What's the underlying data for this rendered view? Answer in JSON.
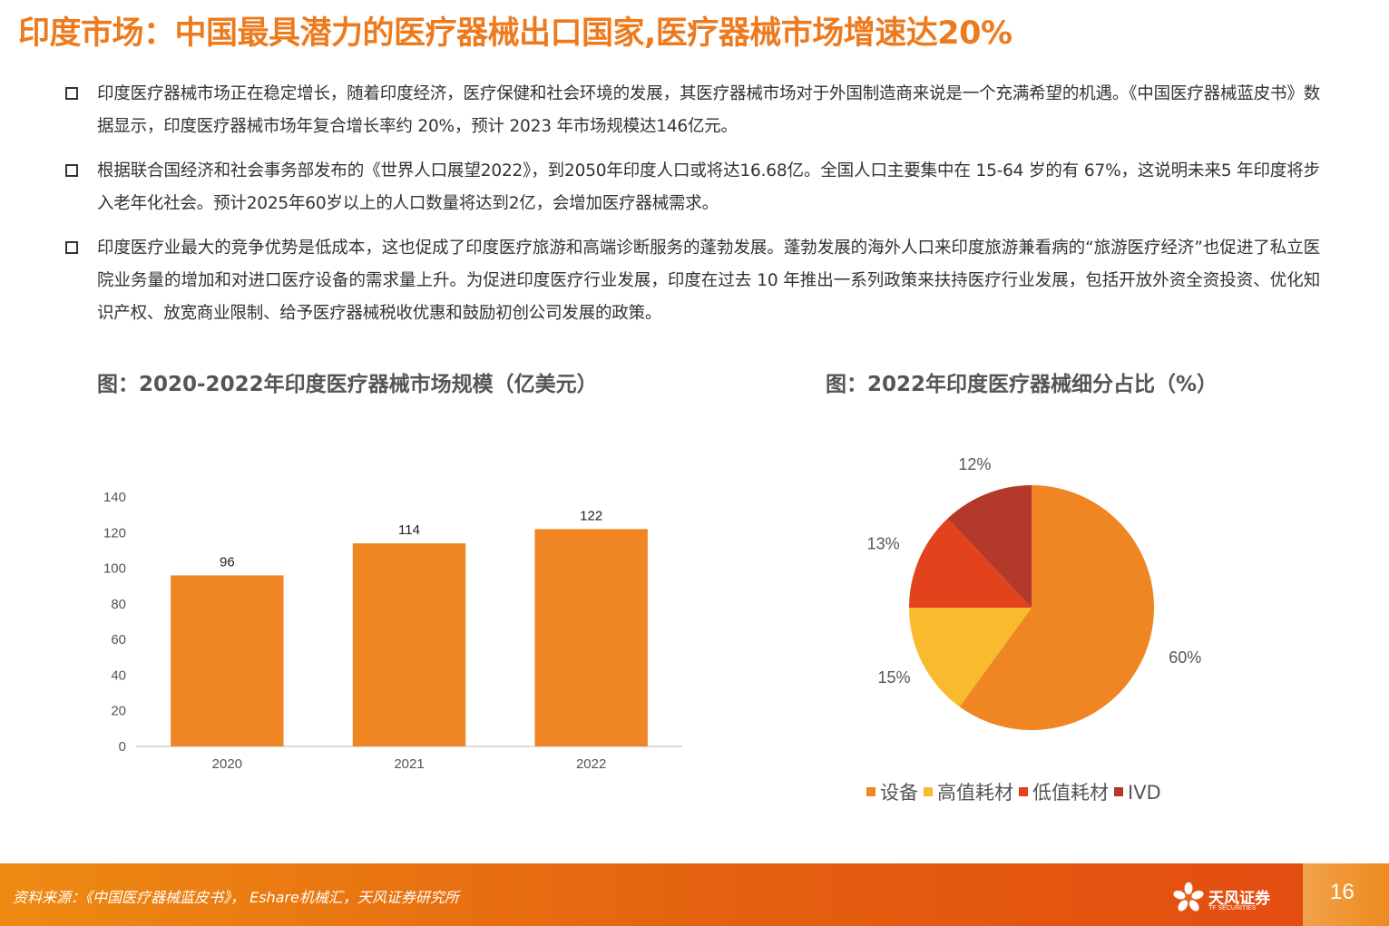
{
  "title": "印度市场：中国最具潜力的医疗器械出口国家,医疗器械市场增速达20%",
  "bullets": [
    "印度医疗器械市场正在稳定增长，随着印度经济，医疗保健和社会环境的发展，其医疗器械市场对于外国制造商来说是一个充满希望的机遇。《中国医疗器械蓝皮书》数据显示，印度医疗器械市场年复合增长率约 20%，预计 2023 年市场规模达146亿元。",
    "根据联合国经济和社会事务部发布的《世界人口展望2022》，到2050年印度人口或将达16.68亿。全国人口主要集中在 15-64 岁的有 67%，这说明未来5 年印度将步入老年化社会。预计2025年60岁以上的人口数量将达到2亿，会增加医疗器械需求。",
    "印度医疗业最大的竞争优势是低成本，这也促成了印度医疗旅游和高端诊断服务的蓬勃发展。蓬勃发展的海外人口来印度旅游兼看病的“旅游医疗经济”也促进了私立医院业务量的增加和对进口医疗设备的需求量上升。为促进印度医疗行业发展，印度在过去 10 年推出一系列政策来扶持医疗行业发展，包括开放外资全资投资、优化知识产权、放宽商业限制、给予医疗器械税收优惠和鼓励初创公司发展的政策。"
  ],
  "chart_data": [
    {
      "type": "bar",
      "title": "图：2020-2022年印度医疗器械市场规模（亿美元）",
      "categories": [
        "2020",
        "2021",
        "2022"
      ],
      "values": [
        96,
        114,
        122
      ],
      "ylim": [
        0,
        140
      ],
      "yticks": [
        "0",
        "20",
        "40",
        "60",
        "80",
        "100",
        "120",
        "140"
      ],
      "color": "#f08523"
    },
    {
      "type": "pie",
      "title": "图：2022年印度医疗器械细分占比（%）",
      "slices": [
        {
          "name": "设备",
          "value": 60,
          "label": "60%",
          "color": "#f08523"
        },
        {
          "name": "高值耗材",
          "value": 15,
          "label": "15%",
          "color": "#f8bb2e"
        },
        {
          "name": "低值耗材",
          "value": 13,
          "label": "13%",
          "color": "#e2421c"
        },
        {
          "name": "IVD",
          "value": 12,
          "label": "12%",
          "color": "#b33a2a"
        }
      ],
      "legend": "bottom"
    }
  ],
  "footer": {
    "source": "资料来源：《中国医疗器械蓝皮书》，  Eshare机械汇，天风证券研究所",
    "brand_cn": "天风证券",
    "brand_en": "TF SECURITIES",
    "page_number": "16"
  }
}
